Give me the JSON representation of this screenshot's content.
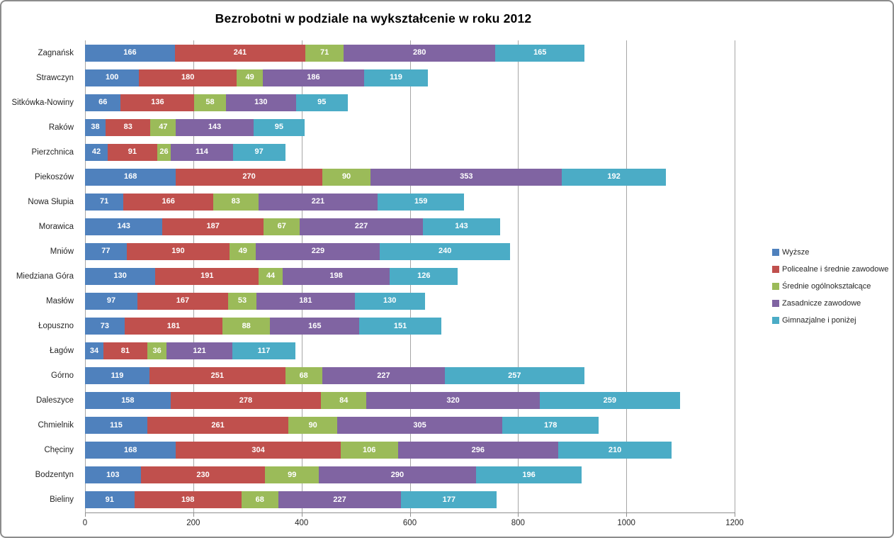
{
  "chart_data": {
    "type": "bar",
    "orientation": "horizontal",
    "stacked": true,
    "title": "Bezrobotni w podziale na wykształcenie w roku 2012",
    "categories": [
      "Zagnańsk",
      "Strawczyn",
      "Sitkówka-Nowiny",
      "Raków",
      "Pierzchnica",
      "Piekoszów",
      "Nowa Słupia",
      "Morawica",
      "Mniów",
      "Miedziana Góra",
      "Masłów",
      "Łopuszno",
      "Łagów",
      "Górno",
      "Daleszyce",
      "Chmielnik",
      "Chęciny",
      "Bodzentyn",
      "Bieliny"
    ],
    "series": [
      {
        "name": "Wyższe",
        "color": "#4F81BD",
        "values": [
          166,
          100,
          66,
          38,
          42,
          168,
          71,
          143,
          77,
          130,
          97,
          73,
          34,
          119,
          158,
          115,
          168,
          103,
          91
        ]
      },
      {
        "name": "Policealne i średnie zawodowe",
        "color": "#C0504D",
        "values": [
          241,
          180,
          136,
          83,
          91,
          270,
          166,
          187,
          190,
          191,
          167,
          181,
          81,
          251,
          278,
          261,
          304,
          230,
          198
        ]
      },
      {
        "name": "Średnie ogólnokształcące",
        "color": "#9BBB59",
        "values": [
          71,
          49,
          58,
          47,
          26,
          90,
          83,
          67,
          49,
          44,
          53,
          88,
          36,
          68,
          84,
          90,
          106,
          99,
          68
        ]
      },
      {
        "name": "Zasadnicze zawodowe",
        "color": "#8064A2",
        "values": [
          280,
          186,
          130,
          143,
          114,
          353,
          221,
          227,
          229,
          198,
          181,
          165,
          121,
          227,
          320,
          305,
          296,
          290,
          227
        ]
      },
      {
        "name": "Gimnazjalne i poniżej",
        "color": "#4BACC6",
        "values": [
          165,
          119,
          95,
          95,
          97,
          192,
          159,
          143,
          240,
          126,
          130,
          151,
          117,
          257,
          259,
          178,
          210,
          196,
          177
        ]
      }
    ],
    "x_axis": {
      "min": 0,
      "max": 1200,
      "tick_interval": 200,
      "ticks": [
        0,
        200,
        400,
        600,
        800,
        1000,
        1200
      ]
    },
    "legend_position": "right",
    "grid": true,
    "value_labels": "inside, white bold"
  },
  "colors": {
    "background": "#FFFFFF",
    "frame_border": "#8C8C8C",
    "gridline": "#A6A6A6",
    "axis_line": "#8F8F8F",
    "value_label_text": "#FFFFFF",
    "axis_text": "#262626"
  }
}
